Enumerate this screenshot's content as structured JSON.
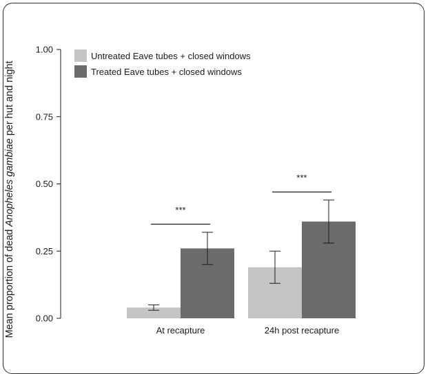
{
  "chart_data": {
    "type": "bar",
    "ylabel_parts": [
      "Mean proportion of dead ",
      "Anopheles gambiae",
      " per hut and night"
    ],
    "categories": [
      "At recapture",
      "24h post recapture"
    ],
    "ylim": [
      0,
      1
    ],
    "yticks": [
      "0.00",
      "0.25",
      "0.50",
      "0.75",
      "1.00"
    ],
    "series": [
      {
        "name": "Untreated Eave tubes + closed windows",
        "color": "#c4c4c4",
        "values": [
          0.04,
          0.19
        ],
        "err_low": [
          0.03,
          0.13
        ],
        "err_high": [
          0.05,
          0.25
        ]
      },
      {
        "name": "Treated Eave tubes + closed windows",
        "color": "#6b6b6b",
        "values": [
          0.26,
          0.36
        ],
        "err_low": [
          0.2,
          0.28
        ],
        "err_high": [
          0.32,
          0.44
        ]
      }
    ],
    "significance": [
      "***",
      "***"
    ],
    "grid": false,
    "legend": "top-left"
  }
}
